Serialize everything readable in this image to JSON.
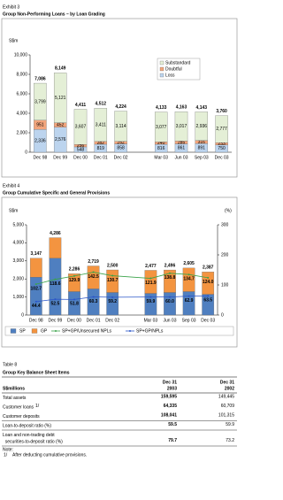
{
  "chart_data": [
    {
      "type": "bar",
      "stacked": true,
      "label": "Exhibit 3",
      "title": "Group Non-Performing Loans – by Loan Grading",
      "ylabel": "S$m",
      "categories": [
        "Dec 98",
        "Dec 99",
        "Dec 00",
        "Dec 01",
        "Dec 02",
        "Mar 03",
        "Jun 03",
        "Sep 03",
        "Dec 03"
      ],
      "series": [
        {
          "name": "Loss",
          "color": "#bcd4ee",
          "values": [
            2336,
            2576,
            548,
            819,
            858,
            816,
            861,
            891,
            750
          ],
          "value_labels": [
            "2,336",
            "2,576",
            "548",
            "819",
            "858",
            "816",
            "861",
            "891",
            "750"
          ]
        },
        {
          "name": "Doubtful",
          "color": "#f2a57c",
          "values": [
            951,
            452,
            256,
            282,
            252,
            240,
            285,
            316,
            233
          ],
          "value_labels": [
            "951",
            "452",
            "256",
            "282",
            "252",
            "240",
            "285",
            "316",
            "233"
          ]
        },
        {
          "name": "Substandard",
          "color": "#e4efd6",
          "values": [
            3799,
            5121,
            3607,
            3411,
            3114,
            3077,
            3017,
            2936,
            2777
          ],
          "value_labels": [
            "3,799",
            "5,121",
            "3,607",
            "3,411",
            "3,114",
            "3,077",
            "3,017",
            "2,936",
            "2,777"
          ]
        }
      ],
      "totals": [
        7086,
        8149,
        4411,
        4512,
        4224,
        4133,
        4163,
        4143,
        3760
      ],
      "total_labels": [
        "7,086",
        "8,149",
        "4,411",
        "4,512",
        "4,224",
        "4,133",
        "4,163",
        "4,143",
        "3,760"
      ],
      "ylim": [
        0,
        10000
      ],
      "yticks": [
        0,
        {
          "value": 2000,
          "label": "2,000"
        },
        {
          "value": 4000,
          "label": "4,000"
        },
        {
          "value": 6000,
          "label": "6,000"
        },
        {
          "value": 8000,
          "label": "8,000"
        },
        {
          "value": 10000,
          "label": "10,000"
        }
      ],
      "legend": "top-right"
    },
    {
      "type": "bar",
      "stacked": true,
      "label": "Exhibit 4",
      "title": "Group Cumulative Specific and General Provisions",
      "ylabel": "S$m",
      "y2label": "(%)",
      "categories": [
        "Dec 98",
        "Dec 99",
        "Dec 00",
        "Dec 01",
        "Dec 02",
        "Mar 03",
        "Jun 03",
        "Sep 03",
        "Dec 03"
      ],
      "series": [
        {
          "name": "SP",
          "color": "#4f7fc0",
          "values": [
            2100,
            3150,
            1300,
            1450,
            1250,
            1200,
            1250,
            1300,
            1150
          ]
        },
        {
          "name": "GP",
          "color": "#f39440",
          "values": [
            1047,
            1136,
            986,
            1269,
            1250,
            1277,
            1246,
            1305,
            1237
          ]
        },
        {
          "name": "SP+GP/Unsecured NPLs",
          "type": "line",
          "axis": "y2",
          "color": "#3aa34a",
          "values": [
            102.7,
            118.6,
            129.9,
            142.5,
            130.7,
            121.9,
            138.8,
            134.7,
            124
          ],
          "value_labels": [
            "102.7",
            "118.6",
            "129.9",
            "142.5",
            "130.7",
            "121.9",
            "138.8",
            "134.7",
            "124.0"
          ]
        },
        {
          "name": "SP+GP/NPLs",
          "type": "line",
          "axis": "y2",
          "color": "#2a55c8",
          "values": [
            44.4,
            52.5,
            51.8,
            60.3,
            59.2,
            59.9,
            60,
            62.9,
            63.5
          ],
          "value_labels": [
            "44.4",
            "52.5",
            "51.8",
            "60.3",
            "59.2",
            "59.9",
            "60.0",
            "62.9",
            "63.5"
          ]
        }
      ],
      "totals": [
        3147,
        4286,
        2286,
        2719,
        2500,
        2477,
        2496,
        2605,
        2387
      ],
      "total_labels": [
        "3,147",
        "4,286",
        "2,286",
        "2,719",
        "2,500",
        "2,477",
        "2,496",
        "2,605",
        "2,387"
      ],
      "ylim": [
        0,
        5000
      ],
      "yticks": [
        0,
        {
          "value": 1000,
          "label": "1,000"
        },
        {
          "value": 2000,
          "label": "2,000"
        },
        {
          "value": 3000,
          "label": "3,000"
        },
        {
          "value": 4000,
          "label": "4,000"
        },
        {
          "value": 5000,
          "label": "5,000"
        }
      ],
      "y2lim": [
        0,
        300
      ],
      "y2ticks": [
        0,
        100,
        200,
        300
      ],
      "legend": "bottom"
    }
  ],
  "table": {
    "label": "Table 8",
    "title": "Group Key Balance Sheet Items",
    "unit": "S$millions",
    "columns": [
      [
        "Dec 31",
        "2003"
      ],
      [
        "Dec 31",
        "2002"
      ]
    ],
    "rows": [
      {
        "label": [
          "Total assets"
        ],
        "values": [
          "159,595",
          "149,445"
        ]
      },
      {
        "label": [
          "Customer loans"
        ],
        "ref": "1/",
        "values": [
          "64,335",
          "60,709"
        ]
      },
      {
        "label": [
          "Customer deposits"
        ],
        "values": [
          "108,041",
          "101,315"
        ]
      },
      {
        "label": [
          "Loan-to-deposit ratio (%)"
        ],
        "values": [
          "59.5",
          "59.9"
        ]
      },
      {
        "label": [
          "Loan and non-trading debt",
          "  securities-to-deposit ratio (%)"
        ],
        "values": [
          "79.7",
          "73.2"
        ]
      }
    ],
    "note_title": "Note:",
    "notes": [
      {
        "ref": "1/",
        "text": "After deducting cumulative provisions."
      }
    ]
  }
}
